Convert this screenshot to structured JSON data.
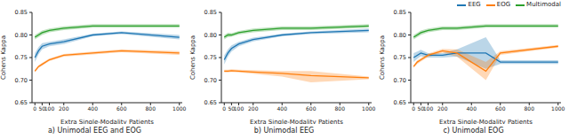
{
  "chart_data": [
    {
      "type": "line",
      "title": "a) Unimodal EEG and EOG",
      "x_label": "Extra Single-Modality Patients",
      "y_label": "Cohens Kappa",
      "x": [
        0,
        25,
        50,
        100,
        200,
        400,
        600,
        1000
      ],
      "series": [
        {
          "name": "EEG",
          "color": "#1f77b4",
          "values": [
            0.75,
            0.765,
            0.775,
            0.78,
            0.785,
            0.8,
            0.805,
            0.795
          ],
          "lower": [
            0.74,
            0.757,
            0.768,
            0.775,
            0.78,
            0.797,
            0.802,
            0.79
          ],
          "upper": [
            0.76,
            0.773,
            0.782,
            0.785,
            0.79,
            0.803,
            0.808,
            0.8
          ]
        },
        {
          "name": "EOG",
          "color": "#ff7f0e",
          "values": [
            0.72,
            0.73,
            0.735,
            0.745,
            0.755,
            0.76,
            0.765,
            0.76
          ],
          "lower": [
            0.717,
            0.727,
            0.732,
            0.742,
            0.752,
            0.757,
            0.762,
            0.756
          ],
          "upper": [
            0.723,
            0.733,
            0.738,
            0.748,
            0.758,
            0.763,
            0.768,
            0.764
          ]
        },
        {
          "name": "Multimodal",
          "color": "#2ca02c",
          "values": [
            0.795,
            0.8,
            0.805,
            0.81,
            0.815,
            0.82,
            0.82,
            0.82
          ],
          "lower": [
            0.79,
            0.795,
            0.8,
            0.806,
            0.811,
            0.816,
            0.816,
            0.816
          ],
          "upper": [
            0.8,
            0.805,
            0.81,
            0.814,
            0.819,
            0.824,
            0.824,
            0.824
          ]
        }
      ],
      "xlim": [
        -20,
        1020
      ],
      "xticks": [
        0,
        50,
        100,
        200,
        400,
        600,
        800,
        1000
      ],
      "ylim": [
        0.65,
        0.85
      ],
      "yticks": [
        0.65,
        {
          "value": 0.7,
          "label": "0.70"
        },
        0.75,
        {
          "value": 0.8,
          "label": "0.80"
        },
        0.85
      ],
      "grid": false
    },
    {
      "type": "line",
      "title": "b) Unimodal EEG",
      "x_label": "Extra Single-Modality Patients",
      "y_label": "Cohens Kappa",
      "x": [
        0,
        25,
        50,
        100,
        200,
        400,
        600,
        1000
      ],
      "series": [
        {
          "name": "EEG",
          "color": "#1f77b4",
          "values": [
            0.745,
            0.76,
            0.77,
            0.78,
            0.79,
            0.8,
            0.805,
            0.81
          ],
          "lower": [
            0.735,
            0.752,
            0.763,
            0.775,
            0.786,
            0.797,
            0.802,
            0.806
          ],
          "upper": [
            0.755,
            0.768,
            0.777,
            0.785,
            0.794,
            0.803,
            0.808,
            0.814
          ]
        },
        {
          "name": "EOG",
          "color": "#ff7f0e",
          "values": [
            0.72,
            0.72,
            0.721,
            0.72,
            0.718,
            0.715,
            0.71,
            0.705
          ],
          "lower": [
            0.717,
            0.717,
            0.718,
            0.717,
            0.714,
            0.708,
            0.695,
            0.702
          ],
          "upper": [
            0.723,
            0.723,
            0.724,
            0.723,
            0.722,
            0.72,
            0.72,
            0.708
          ]
        },
        {
          "name": "Multimodal",
          "color": "#2ca02c",
          "values": [
            0.795,
            0.8,
            0.8,
            0.805,
            0.81,
            0.815,
            0.815,
            0.82
          ],
          "lower": [
            0.79,
            0.795,
            0.796,
            0.801,
            0.806,
            0.811,
            0.811,
            0.816
          ],
          "upper": [
            0.8,
            0.805,
            0.804,
            0.809,
            0.814,
            0.819,
            0.819,
            0.824
          ]
        }
      ],
      "xlim": [
        -20,
        1020
      ],
      "xticks": [
        0,
        50,
        100,
        200,
        400,
        600,
        800,
        1000
      ],
      "ylim": [
        0.65,
        0.85
      ],
      "yticks": [
        0.65,
        {
          "value": 0.7,
          "label": "0.70"
        },
        0.75,
        {
          "value": 0.8,
          "label": "0.80"
        },
        0.85
      ],
      "grid": false
    },
    {
      "type": "line",
      "title": "c) Unimodal EOG",
      "x_label": "Extra Single-Modality Patients",
      "y_label": "Cohens Kappa",
      "x": [
        0,
        25,
        50,
        100,
        200,
        300,
        500,
        600,
        1000
      ],
      "series": [
        {
          "name": "EEG",
          "color": "#1f77b4",
          "values": [
            0.75,
            0.755,
            0.76,
            0.755,
            0.755,
            0.76,
            0.76,
            0.74,
            0.74
          ],
          "lower": [
            0.74,
            0.747,
            0.753,
            0.75,
            0.75,
            0.752,
            0.725,
            0.736,
            0.736
          ],
          "upper": [
            0.76,
            0.763,
            0.767,
            0.76,
            0.76,
            0.768,
            0.795,
            0.744,
            0.744
          ]
        },
        {
          "name": "EOG",
          "color": "#ff7f0e",
          "values": [
            0.73,
            0.74,
            0.745,
            0.755,
            0.765,
            0.76,
            0.72,
            0.76,
            0.775
          ],
          "lower": [
            0.727,
            0.736,
            0.741,
            0.751,
            0.761,
            0.752,
            0.7,
            0.756,
            0.772
          ],
          "upper": [
            0.733,
            0.744,
            0.749,
            0.759,
            0.769,
            0.768,
            0.74,
            0.764,
            0.778
          ]
        },
        {
          "name": "Multimodal",
          "color": "#2ca02c",
          "values": [
            0.795,
            0.8,
            0.805,
            0.81,
            0.815,
            0.815,
            0.82,
            0.82,
            0.82
          ],
          "lower": [
            0.79,
            0.795,
            0.8,
            0.806,
            0.811,
            0.811,
            0.816,
            0.816,
            0.816
          ],
          "upper": [
            0.8,
            0.805,
            0.81,
            0.814,
            0.819,
            0.819,
            0.824,
            0.824,
            0.824
          ]
        }
      ],
      "xlim": [
        -20,
        1020
      ],
      "xticks": [
        0,
        50,
        100,
        200,
        400,
        600,
        800,
        1000
      ],
      "ylim": [
        0.65,
        0.85
      ],
      "yticks": [
        0.65,
        {
          "value": 0.7,
          "label": "0.70"
        },
        0.75,
        {
          "value": 0.8,
          "label": "0.80"
        },
        0.85
      ],
      "grid": false,
      "legend": "upper right"
    }
  ]
}
